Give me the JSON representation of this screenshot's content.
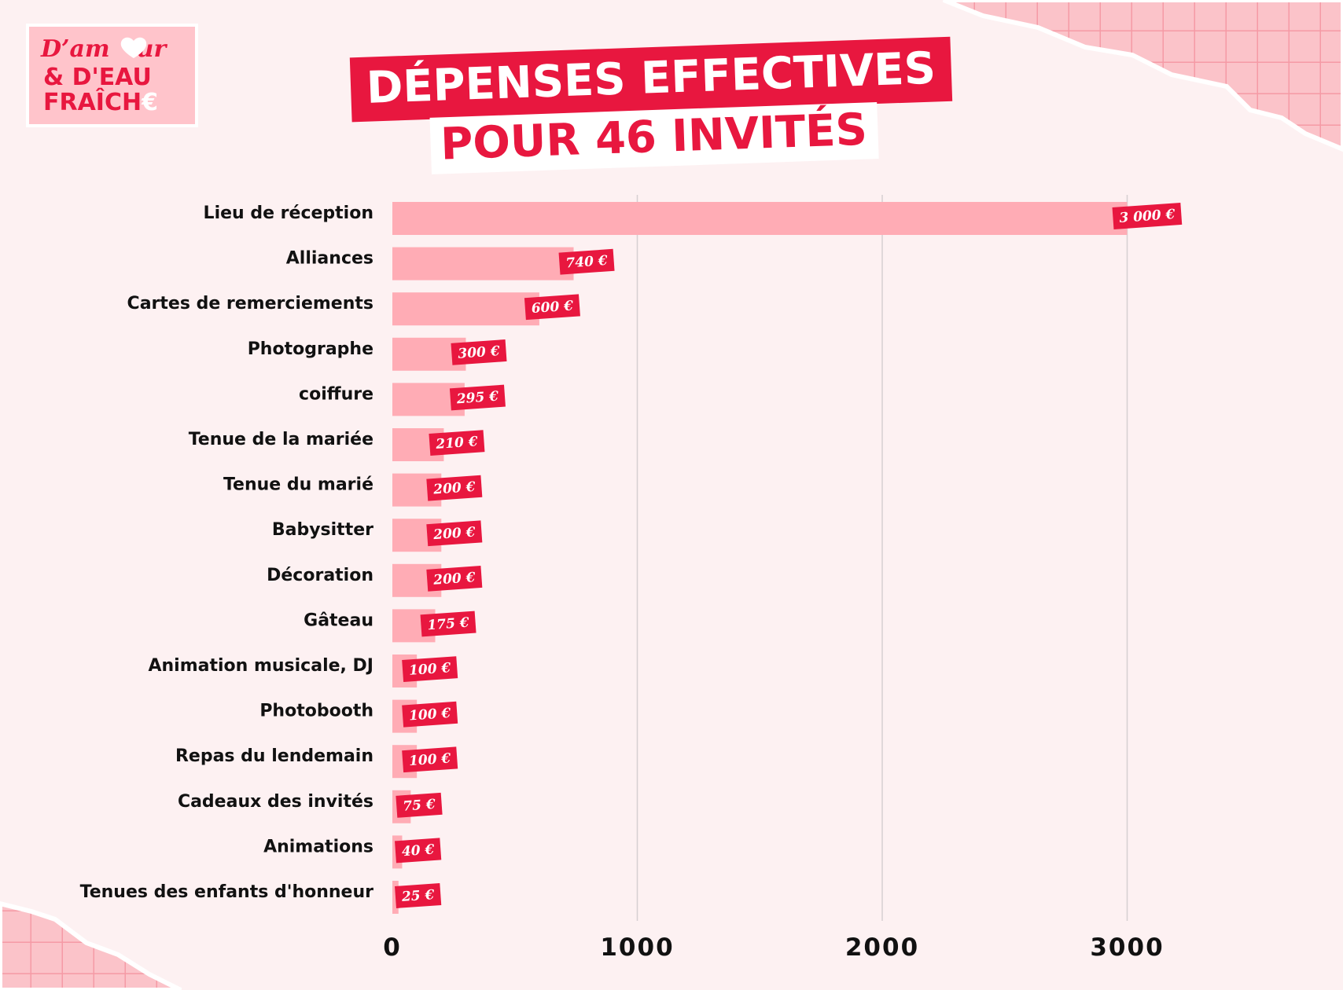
{
  "logo": [
    "D’am",
    "ur",
    "& D'EAU",
    "FRAÎCH",
    "€"
  ],
  "chart_data": {
    "type": "barh",
    "title": [
      "DÉPENSES EFFECTIVES",
      "POUR 46 INVITÉS"
    ],
    "categories": [
      "Lieu de réception",
      "Alliances",
      "Cartes de remerciements",
      "Photographe",
      "coiffure",
      "Tenue de la mariée",
      "Tenue du  marié",
      "Babysitter",
      "Décoration",
      "Gâteau",
      "Animation musicale, DJ",
      "Photobooth",
      "Repas du lendemain",
      "Cadeaux des invités",
      "Animations",
      "Tenues des enfants d'honneur"
    ],
    "values": [
      3000,
      740,
      600,
      300,
      295,
      210,
      200,
      200,
      200,
      175,
      100,
      100,
      100,
      75,
      40,
      25
    ],
    "value_labels": [
      "3 000 €",
      "740 €",
      "600 €",
      "300 €",
      "295 €",
      "210 €",
      "200 €",
      "200 €",
      "200 €",
      "175 €",
      "100 €",
      "100 €",
      "100 €",
      "75 €",
      "40 €",
      "25 €"
    ],
    "color": "#ffacb5",
    "label_color": "#e8173f",
    "xlim": [
      0,
      3500
    ],
    "xticks": [
      0,
      1000,
      2000,
      3000
    ],
    "grid": true
  }
}
